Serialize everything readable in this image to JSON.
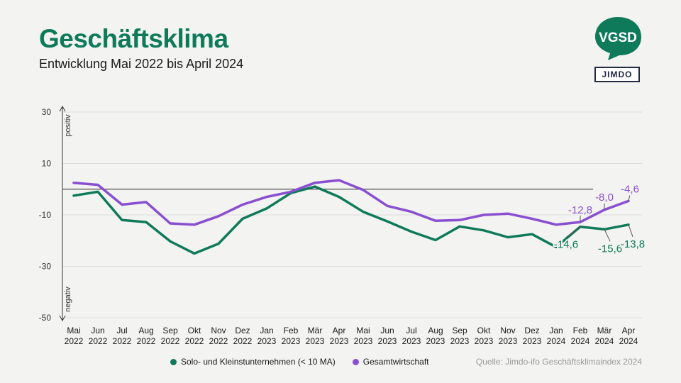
{
  "header": {
    "title": "Geschäftsklima",
    "subtitle": "Entwicklung Mai 2022 bis April 2024"
  },
  "logos": {
    "vgsd": "VGSD",
    "jimdo": "JIMDO"
  },
  "colors": {
    "solo": "#0f7a5a",
    "gesamt": "#8a4fd0",
    "grid": "#dcdcdc",
    "zero_line": "#222222"
  },
  "source": "Quelle: Jimdo-ifo Geschäftsklimaindex 2024",
  "chart_data": {
    "type": "line",
    "ylim": [
      -50,
      30
    ],
    "yticks": [
      30,
      10,
      -10,
      -30,
      -50
    ],
    "axis_annotations": {
      "top": "positiv",
      "bottom": "negativ"
    },
    "grid": true,
    "legend_position": "bottom",
    "x": [
      [
        "Mai",
        "2022"
      ],
      [
        "Jun",
        "2022"
      ],
      [
        "Jul",
        "2022"
      ],
      [
        "Aug",
        "2022"
      ],
      [
        "Sep",
        "2022"
      ],
      [
        "Okt",
        "2022"
      ],
      [
        "Nov",
        "2022"
      ],
      [
        "Dez",
        "2022"
      ],
      [
        "Jan",
        "2023"
      ],
      [
        "Feb",
        "2023"
      ],
      [
        "Mär",
        "2023"
      ],
      [
        "Apr",
        "2023"
      ],
      [
        "Mai",
        "2023"
      ],
      [
        "Jun",
        "2023"
      ],
      [
        "Jul",
        "2023"
      ],
      [
        "Aug",
        "2023"
      ],
      [
        "Sep",
        "2023"
      ],
      [
        "Okt",
        "2023"
      ],
      [
        "Nov",
        "2023"
      ],
      [
        "Dez",
        "2023"
      ],
      [
        "Jan",
        "2024"
      ],
      [
        "Feb",
        "2024"
      ],
      [
        "Mär",
        "2024"
      ],
      [
        "Apr",
        "2024"
      ]
    ],
    "series": [
      {
        "name": "Solo- und Kleinstunternehmen (< 10 MA)",
        "key": "solo",
        "values": [
          -2.5,
          -1.0,
          -12.0,
          -12.8,
          -20.3,
          -25.0,
          -21.2,
          -11.5,
          -7.5,
          -1.5,
          1.0,
          -3.0,
          -8.8,
          -12.5,
          -16.5,
          -19.8,
          -14.5,
          -16.0,
          -18.7,
          -17.5,
          -22.5,
          -14.6,
          -15.6,
          -13.8
        ],
        "labels": {
          "21": "-14,6",
          "22": "-15,6",
          "23": "-13,8"
        }
      },
      {
        "name": "Gesamtwirtschaft",
        "key": "gesamt",
        "values": [
          2.5,
          1.7,
          -6.0,
          -5.0,
          -13.3,
          -13.8,
          -10.5,
          -6.0,
          -3.0,
          -1.0,
          2.5,
          3.5,
          -0.3,
          -6.5,
          -8.8,
          -12.3,
          -12.0,
          -10.0,
          -9.5,
          -11.5,
          -13.8,
          -12.8,
          -8.0,
          -4.6
        ],
        "labels": {
          "21": "-12,8",
          "22": "-8,0",
          "23": "-4,6"
        }
      }
    ]
  }
}
